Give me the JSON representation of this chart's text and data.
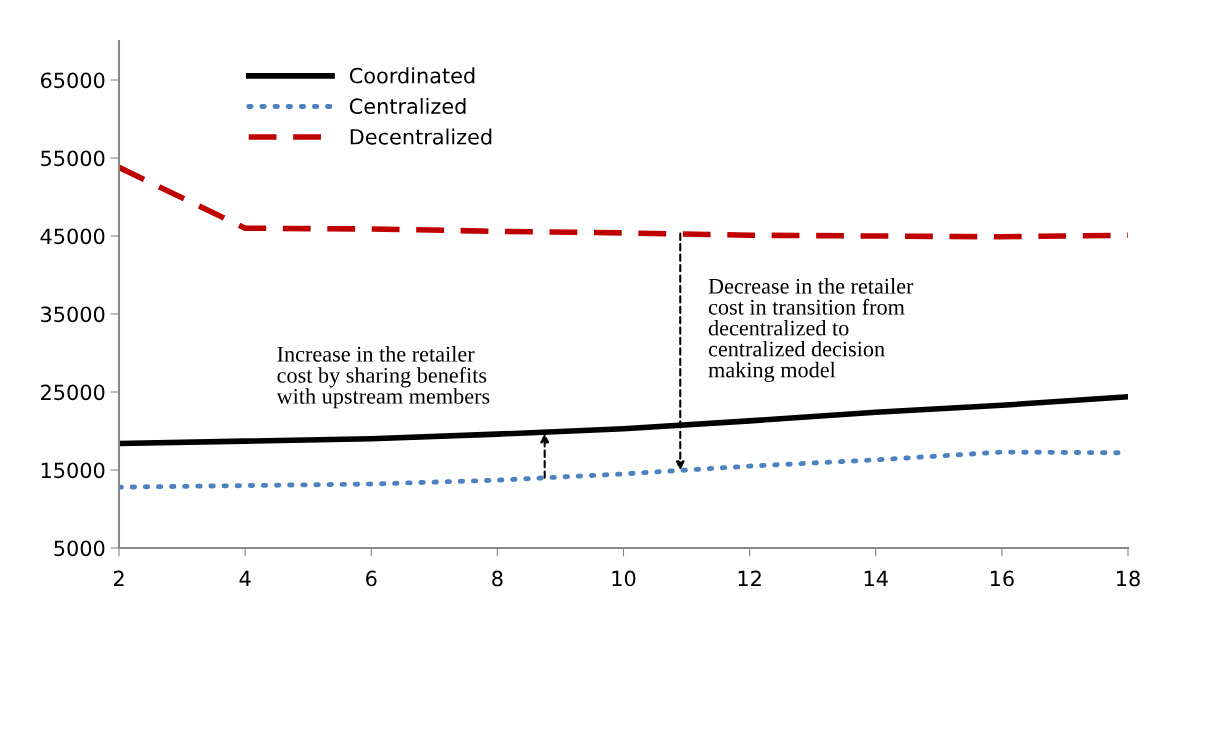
{
  "chart_data": {
    "type": "line",
    "x": [
      2,
      4,
      6,
      8,
      10,
      12,
      14,
      16,
      18
    ],
    "series": [
      {
        "name": "Coordinated",
        "color": "#000000",
        "line_style": "solid",
        "values": [
          18400,
          18700,
          19000,
          19600,
          20300,
          21300,
          22400,
          23300,
          24400
        ]
      },
      {
        "name": "Centralized",
        "color": "#4f81bd",
        "line_style": "dotted",
        "values": [
          12800,
          13000,
          13200,
          13700,
          14500,
          15500,
          16300,
          17300,
          17200
        ]
      },
      {
        "name": "Decentralized",
        "color": "#c00000",
        "line_style": "dashed",
        "values": [
          53800,
          46000,
          45900,
          45600,
          45400,
          45100,
          45000,
          44900,
          45100
        ]
      }
    ],
    "xlim": [
      2,
      18
    ],
    "xticks": [
      2,
      4,
      6,
      8,
      10,
      12,
      14,
      16,
      18
    ],
    "ylim": [
      5000,
      70000
    ],
    "yticks": [
      5000,
      15000,
      25000,
      35000,
      45000,
      55000,
      65000
    ],
    "grid": false,
    "legend": "top left",
    "marker": "none",
    "annotations": [
      {
        "text": "Increase in the retailer\ncost by sharing benefits\nwith upstream members",
        "x": 8.75,
        "y": 19700
      },
      {
        "text": "Decrease in the retailer\ncost in transition from\ndecentralized to\ncentralized decision\nmaking model",
        "x": 10.9,
        "y": 45300
      }
    ]
  }
}
